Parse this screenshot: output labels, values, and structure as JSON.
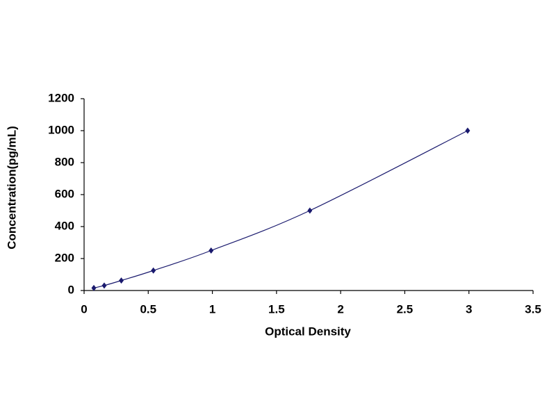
{
  "chart_data": {
    "type": "scatter",
    "line": "smooth",
    "x_label": "Optical Density",
    "y_label": "Concentration(pg/mL)",
    "x": [
      0.076,
      0.157,
      0.29,
      0.54,
      0.99,
      1.76,
      2.99
    ],
    "values": [
      15.6,
      31.2,
      62.5,
      125,
      250,
      500,
      1000
    ],
    "color": "#1a1a6e",
    "xlim": [
      0,
      3.5
    ],
    "xticks": [
      0,
      0.5,
      1,
      1.5,
      2,
      2.5,
      3,
      3.5
    ],
    "ylim": [
      0,
      1200
    ],
    "yticks": [
      0,
      200,
      400,
      600,
      800,
      1000,
      1200
    ],
    "grid": false
  }
}
